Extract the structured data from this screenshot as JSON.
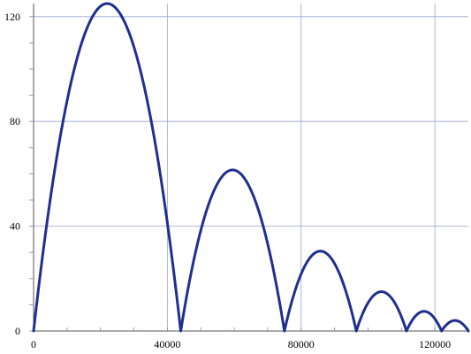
{
  "chart_data": {
    "type": "line",
    "title": "",
    "xlabel": "",
    "ylabel": "",
    "xlim": [
      0,
      130000
    ],
    "ylim": [
      0,
      125
    ],
    "x_ticks": [
      0,
      40000,
      80000,
      120000
    ],
    "y_ticks": [
      0,
      40,
      80,
      120
    ],
    "x_tick_labels": [
      "0",
      "40000",
      "80000",
      "120000"
    ],
    "y_tick_labels": [
      "0",
      "40",
      "80",
      "120"
    ],
    "grid": true,
    "legend": "none",
    "line_color": "#1f2f8f",
    "grid_color": "#9aa3cf",
    "series": [
      {
        "arcs": [
          {
            "x_start": 0,
            "x_end": 44000,
            "peak": 125
          },
          {
            "x_start": 44000,
            "x_end": 75000,
            "peak": 61.5
          },
          {
            "x_start": 75000,
            "x_end": 96500,
            "peak": 30.5
          },
          {
            "x_start": 96500,
            "x_end": 111500,
            "peak": 15
          },
          {
            "x_start": 111500,
            "x_end": 122000,
            "peak": 7.5
          },
          {
            "x_start": 122000,
            "x_end": 130000,
            "peak": 4
          }
        ]
      }
    ]
  }
}
